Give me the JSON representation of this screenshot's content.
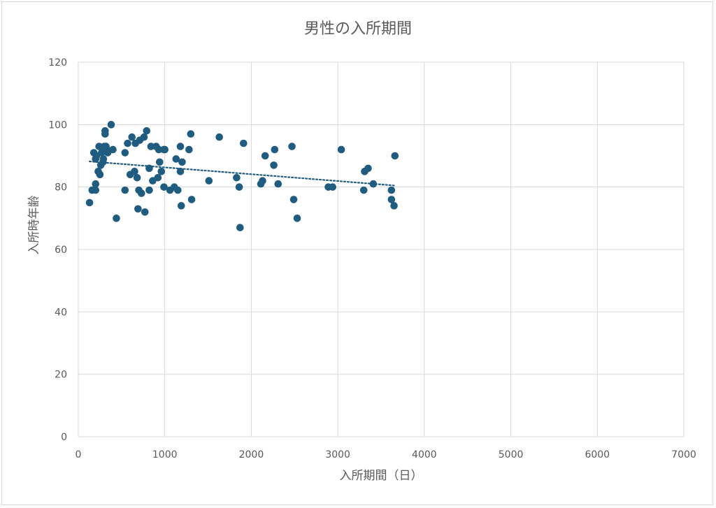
{
  "chart_data": {
    "type": "scatter",
    "title": "男性の入所期間",
    "xlabel": "入所期間（日）",
    "ylabel": "入所時年齢",
    "xlim": [
      0,
      7000
    ],
    "ylim": [
      0,
      120
    ],
    "xticks": [
      "0",
      "1000",
      "2000",
      "3000",
      "4000",
      "5000",
      "6000",
      "7000"
    ],
    "yticks": [
      "0",
      "20",
      "40",
      "60",
      "80",
      "100",
      "120"
    ],
    "grid": true,
    "legend": "none",
    "marker_color": "#1f5c7f",
    "trendline": {
      "type": "linear",
      "style": "dotted",
      "color": "#1f5c7f",
      "x": [
        130,
        3650
      ],
      "y": [
        88.2,
        80.5
      ]
    },
    "points": [
      [
        130,
        75
      ],
      [
        160,
        79
      ],
      [
        180,
        91
      ],
      [
        200,
        79
      ],
      [
        200,
        81
      ],
      [
        200,
        89
      ],
      [
        210,
        90
      ],
      [
        230,
        85
      ],
      [
        240,
        93
      ],
      [
        250,
        84
      ],
      [
        260,
        87
      ],
      [
        270,
        91
      ],
      [
        280,
        92
      ],
      [
        285,
        88
      ],
      [
        290,
        89
      ],
      [
        300,
        93
      ],
      [
        310,
        97
      ],
      [
        310,
        98
      ],
      [
        320,
        93
      ],
      [
        330,
        92
      ],
      [
        340,
        91
      ],
      [
        380,
        100
      ],
      [
        400,
        92
      ],
      [
        440,
        70
      ],
      [
        540,
        91
      ],
      [
        540,
        79
      ],
      [
        570,
        94
      ],
      [
        600,
        84
      ],
      [
        620,
        96
      ],
      [
        650,
        85
      ],
      [
        660,
        94
      ],
      [
        680,
        83
      ],
      [
        690,
        73
      ],
      [
        700,
        79
      ],
      [
        710,
        95
      ],
      [
        730,
        78
      ],
      [
        760,
        96
      ],
      [
        770,
        72
      ],
      [
        790,
        98
      ],
      [
        820,
        79
      ],
      [
        820,
        86
      ],
      [
        840,
        93
      ],
      [
        860,
        82
      ],
      [
        900,
        93
      ],
      [
        920,
        83
      ],
      [
        930,
        92
      ],
      [
        940,
        88
      ],
      [
        960,
        85
      ],
      [
        990,
        80
      ],
      [
        990,
        92
      ],
      [
        1000,
        92
      ],
      [
        1060,
        79
      ],
      [
        1110,
        80
      ],
      [
        1130,
        89
      ],
      [
        1150,
        79
      ],
      [
        1180,
        85
      ],
      [
        1180,
        93
      ],
      [
        1190,
        74
      ],
      [
        1200,
        88
      ],
      [
        1280,
        92
      ],
      [
        1300,
        97
      ],
      [
        1310,
        76
      ],
      [
        1510,
        82
      ],
      [
        1630,
        96
      ],
      [
        1830,
        83
      ],
      [
        1860,
        80
      ],
      [
        1870,
        67
      ],
      [
        1910,
        94
      ],
      [
        2110,
        81
      ],
      [
        2130,
        82
      ],
      [
        2160,
        90
      ],
      [
        2260,
        87
      ],
      [
        2270,
        92
      ],
      [
        2310,
        81
      ],
      [
        2470,
        93
      ],
      [
        2490,
        76
      ],
      [
        2530,
        70
      ],
      [
        2890,
        80
      ],
      [
        2940,
        80
      ],
      [
        3040,
        92
      ],
      [
        3300,
        79
      ],
      [
        3310,
        85
      ],
      [
        3350,
        86
      ],
      [
        3410,
        81
      ],
      [
        3620,
        76
      ],
      [
        3620,
        79
      ],
      [
        3650,
        74
      ],
      [
        3660,
        90
      ]
    ]
  }
}
